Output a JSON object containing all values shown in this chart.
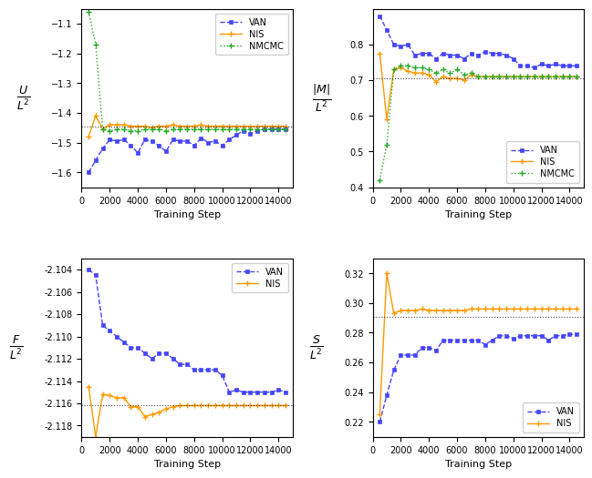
{
  "colors": {
    "VAN": "#4444ff",
    "NIS": "#ff9900",
    "NMCMC": "#22aa22"
  },
  "panel_TL": {
    "hline": -1.445,
    "xlim": [
      0,
      15000
    ],
    "ylim": [
      -1.65,
      -1.05
    ],
    "yticks": [
      -1.1,
      -1.2,
      -1.3,
      -1.4,
      -1.5,
      -1.6
    ],
    "xticks": [
      0,
      2000,
      4000,
      6000,
      8000,
      10000,
      12000,
      14000
    ],
    "VAN_x": [
      500,
      1000,
      1500,
      2000,
      2500,
      3000,
      3500,
      4000,
      4500,
      5000,
      5500,
      6000,
      6500,
      7000,
      7500,
      8000,
      8500,
      9000,
      9500,
      10000,
      10500,
      11000,
      11500,
      12000,
      12500,
      13000,
      13500,
      14000,
      14500
    ],
    "VAN_y": [
      -1.6,
      -1.56,
      -1.52,
      -1.49,
      -1.495,
      -1.49,
      -1.51,
      -1.535,
      -1.49,
      -1.495,
      -1.51,
      -1.53,
      -1.49,
      -1.495,
      -1.495,
      -1.51,
      -1.485,
      -1.5,
      -1.495,
      -1.51,
      -1.49,
      -1.475,
      -1.46,
      -1.47,
      -1.46,
      -1.455,
      -1.455,
      -1.455,
      -1.455
    ],
    "NIS_x": [
      500,
      1000,
      1500,
      2000,
      2500,
      3000,
      3500,
      4000,
      4500,
      5000,
      5500,
      6000,
      6500,
      7000,
      7500,
      8000,
      8500,
      9000,
      9500,
      10000,
      10500,
      11000,
      11500,
      12000,
      12500,
      13000,
      13500,
      14000,
      14500
    ],
    "NIS_y": [
      -1.48,
      -1.41,
      -1.455,
      -1.44,
      -1.44,
      -1.44,
      -1.445,
      -1.445,
      -1.445,
      -1.45,
      -1.445,
      -1.445,
      -1.44,
      -1.445,
      -1.445,
      -1.445,
      -1.44,
      -1.445,
      -1.445,
      -1.445,
      -1.445,
      -1.445,
      -1.445,
      -1.445,
      -1.445,
      -1.445,
      -1.445,
      -1.445,
      -1.445
    ],
    "NMCMC_x": [
      500,
      1000,
      1500,
      2000,
      2500,
      3000,
      3500,
      4000,
      4500,
      5000,
      5500,
      6000,
      6500,
      7000,
      7500,
      8000,
      8500,
      9000,
      9500,
      10000,
      10500,
      11000,
      11500,
      12000,
      12500,
      13000,
      13500,
      14000,
      14500
    ],
    "NMCMC_y": [
      -1.06,
      -1.17,
      -1.455,
      -1.46,
      -1.455,
      -1.455,
      -1.46,
      -1.46,
      -1.455,
      -1.455,
      -1.455,
      -1.46,
      -1.455,
      -1.455,
      -1.455,
      -1.455,
      -1.455,
      -1.455,
      -1.455,
      -1.455,
      -1.455,
      -1.455,
      -1.455,
      -1.455,
      -1.455,
      -1.455,
      -1.455,
      -1.455,
      -1.455
    ],
    "has_NMCMC": true
  },
  "panel_TR": {
    "hline": 0.706,
    "xlim": [
      0,
      15000
    ],
    "ylim": [
      0.4,
      0.9
    ],
    "yticks": [
      0.4,
      0.5,
      0.6,
      0.7,
      0.8
    ],
    "xticks": [
      0,
      2000,
      4000,
      6000,
      8000,
      10000,
      12000,
      14000
    ],
    "VAN_x": [
      500,
      1000,
      1500,
      2000,
      2500,
      3000,
      3500,
      4000,
      4500,
      5000,
      5500,
      6000,
      6500,
      7000,
      7500,
      8000,
      8500,
      9000,
      9500,
      10000,
      10500,
      11000,
      11500,
      12000,
      12500,
      13000,
      13500,
      14000,
      14500
    ],
    "VAN_y": [
      0.88,
      0.84,
      0.8,
      0.795,
      0.8,
      0.77,
      0.775,
      0.775,
      0.76,
      0.775,
      0.77,
      0.77,
      0.76,
      0.775,
      0.77,
      0.78,
      0.775,
      0.775,
      0.77,
      0.76,
      0.74,
      0.74,
      0.735,
      0.745,
      0.74,
      0.745,
      0.74,
      0.74,
      0.74
    ],
    "NIS_x": [
      500,
      1000,
      1500,
      2000,
      2500,
      3000,
      3500,
      4000,
      4500,
      5000,
      5500,
      6000,
      6500,
      7000,
      7500,
      8000,
      8500,
      9000,
      9500,
      10000,
      10500,
      11000,
      11500,
      12000,
      12500,
      13000,
      13500,
      14000,
      14500
    ],
    "NIS_y": [
      0.775,
      0.59,
      0.73,
      0.735,
      0.725,
      0.72,
      0.72,
      0.715,
      0.695,
      0.71,
      0.705,
      0.705,
      0.7,
      0.715,
      0.71,
      0.71,
      0.71,
      0.71,
      0.71,
      0.71,
      0.71,
      0.71,
      0.71,
      0.71,
      0.71,
      0.71,
      0.71,
      0.71,
      0.71
    ],
    "NMCMC_x": [
      500,
      1000,
      1500,
      2000,
      2500,
      3000,
      3500,
      4000,
      4500,
      5000,
      5500,
      6000,
      6500,
      7000,
      7500,
      8000,
      8500,
      9000,
      9500,
      10000,
      10500,
      11000,
      11500,
      12000,
      12500,
      13000,
      13500,
      14000,
      14500
    ],
    "NMCMC_y": [
      0.42,
      0.52,
      0.73,
      0.74,
      0.74,
      0.735,
      0.735,
      0.73,
      0.72,
      0.73,
      0.72,
      0.73,
      0.715,
      0.72,
      0.71,
      0.71,
      0.71,
      0.71,
      0.71,
      0.71,
      0.71,
      0.71,
      0.71,
      0.71,
      0.71,
      0.71,
      0.71,
      0.71,
      0.71
    ],
    "has_NMCMC": true
  },
  "panel_BL": {
    "hline": -2.1162,
    "xlim": [
      0,
      15000
    ],
    "ylim": [
      -2.119,
      -2.103
    ],
    "yticks": [
      -2.104,
      -2.106,
      -2.108,
      -2.11,
      -2.112,
      -2.114,
      -2.116,
      -2.118
    ],
    "xticks": [
      0,
      2000,
      4000,
      6000,
      8000,
      10000,
      12000,
      14000
    ],
    "VAN_x": [
      500,
      1000,
      1500,
      2000,
      2500,
      3000,
      3500,
      4000,
      4500,
      5000,
      5500,
      6000,
      6500,
      7000,
      7500,
      8000,
      8500,
      9000,
      9500,
      10000,
      10500,
      11000,
      11500,
      12000,
      12500,
      13000,
      13500,
      14000,
      14500
    ],
    "VAN_y": [
      -2.104,
      -2.1045,
      -2.109,
      -2.1095,
      -2.11,
      -2.1105,
      -2.111,
      -2.111,
      -2.1115,
      -2.112,
      -2.1115,
      -2.1115,
      -2.112,
      -2.1125,
      -2.1125,
      -2.113,
      -2.113,
      -2.113,
      -2.113,
      -2.1135,
      -2.115,
      -2.1148,
      -2.115,
      -2.115,
      -2.115,
      -2.115,
      -2.115,
      -2.1148,
      -2.115
    ],
    "NIS_x": [
      500,
      1000,
      1500,
      2000,
      2500,
      3000,
      3500,
      4000,
      4500,
      5000,
      5500,
      6000,
      6500,
      7000,
      7500,
      8000,
      8500,
      9000,
      9500,
      10000,
      10500,
      11000,
      11500,
      12000,
      12500,
      13000,
      13500,
      14000,
      14500
    ],
    "NIS_y": [
      -2.1145,
      -2.119,
      -2.1152,
      -2.1153,
      -2.1155,
      -2.1155,
      -2.1163,
      -2.1163,
      -2.1172,
      -2.117,
      -2.1168,
      -2.1165,
      -2.1163,
      -2.1162,
      -2.1162,
      -2.1162,
      -2.1162,
      -2.1162,
      -2.1162,
      -2.1162,
      -2.1162,
      -2.1162,
      -2.1162,
      -2.1162,
      -2.1162,
      -2.1162,
      -2.1162,
      -2.1162,
      -2.1162
    ],
    "has_NMCMC": false
  },
  "panel_BR": {
    "hline": 0.291,
    "xlim": [
      0,
      15000
    ],
    "ylim": [
      0.21,
      0.33
    ],
    "yticks": [
      0.22,
      0.24,
      0.26,
      0.28,
      0.3,
      0.32
    ],
    "xticks": [
      0,
      2000,
      4000,
      6000,
      8000,
      10000,
      12000,
      14000
    ],
    "VAN_x": [
      500,
      1000,
      1500,
      2000,
      2500,
      3000,
      3500,
      4000,
      4500,
      5000,
      5500,
      6000,
      6500,
      7000,
      7500,
      8000,
      8500,
      9000,
      9500,
      10000,
      10500,
      11000,
      11500,
      12000,
      12500,
      13000,
      13500,
      14000,
      14500
    ],
    "VAN_y": [
      0.22,
      0.238,
      0.255,
      0.265,
      0.265,
      0.265,
      0.27,
      0.27,
      0.268,
      0.275,
      0.275,
      0.275,
      0.275,
      0.275,
      0.275,
      0.272,
      0.275,
      0.278,
      0.278,
      0.276,
      0.278,
      0.278,
      0.278,
      0.278,
      0.275,
      0.278,
      0.278,
      0.279,
      0.279
    ],
    "NIS_x": [
      500,
      1000,
      1500,
      2000,
      2500,
      3000,
      3500,
      4000,
      4500,
      5000,
      5500,
      6000,
      6500,
      7000,
      7500,
      8000,
      8500,
      9000,
      9500,
      10000,
      10500,
      11000,
      11500,
      12000,
      12500,
      13000,
      13500,
      14000,
      14500
    ],
    "NIS_y": [
      0.225,
      0.32,
      0.293,
      0.295,
      0.295,
      0.295,
      0.296,
      0.295,
      0.295,
      0.295,
      0.295,
      0.295,
      0.295,
      0.296,
      0.296,
      0.296,
      0.296,
      0.296,
      0.296,
      0.296,
      0.296,
      0.296,
      0.296,
      0.296,
      0.296,
      0.296,
      0.296,
      0.296,
      0.296
    ],
    "has_NMCMC": false
  },
  "ylabels": {
    "panel_TL": "U\n$L^2$",
    "panel_TR": "|M|\n$L^2$",
    "panel_BL": "F\n$L^2$",
    "panel_BR": "S\n$L^2$"
  },
  "legend_locs": {
    "panel_TL": "upper right",
    "panel_TR": "lower right",
    "panel_BL": "upper right",
    "panel_BR": "lower right"
  }
}
